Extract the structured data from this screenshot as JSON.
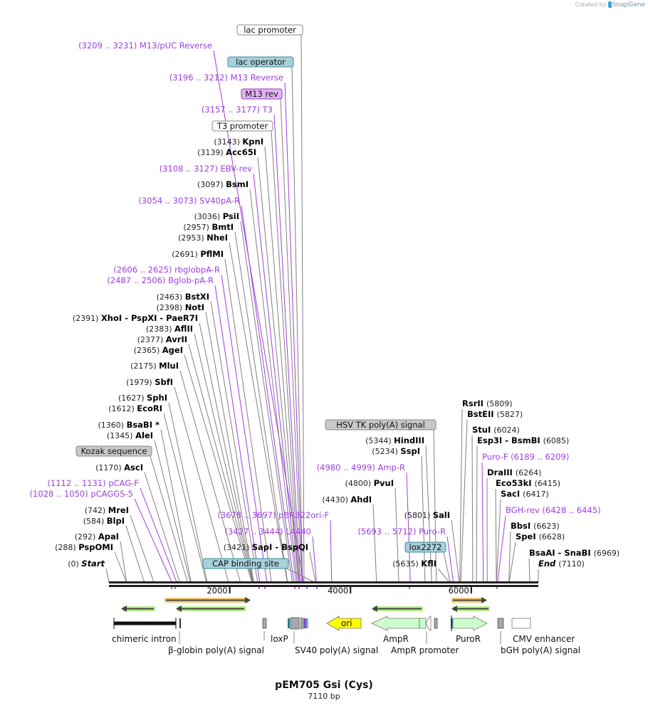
{
  "watermark": {
    "created_by": "Created by",
    "brand": "SnapGene"
  },
  "title": "pEM705 Gsi (Cys)",
  "length_label": "7110 bp",
  "colors": {
    "primer": "#a13de0",
    "enzyme": "#000000",
    "backbone": "#222222",
    "ori": "#ffff00",
    "ampr": "#ccffcc",
    "orf_orange": "#f6c979",
    "orf_green": "#b8f08a",
    "lac_operator": "#a7d0da",
    "m13_rev": "#e3b3f6",
    "misc_grey": "#c6c8cb"
  },
  "ruler": {
    "ticks": [
      {
        "label": "2000",
        "value": 2000
      },
      {
        "label": "4000",
        "value": 4000
      },
      {
        "label": "6000",
        "value": 6000
      }
    ]
  },
  "left_labels": [
    {
      "type": "boxed",
      "name": "lac promoter",
      "box": "white"
    },
    {
      "type": "primer",
      "pos": "(3209 .. 3231)",
      "name": "M13/pUC Reverse"
    },
    {
      "type": "boxed",
      "name": "lac operator",
      "box": "teal"
    },
    {
      "type": "primer",
      "pos": "(3196 .. 3212)",
      "name": "M13 Reverse"
    },
    {
      "type": "boxed",
      "name": "M13 rev",
      "box": "purple"
    },
    {
      "type": "primer",
      "pos": "(3157 .. 3177)",
      "name": "T3"
    },
    {
      "type": "boxed",
      "name": "T3 promoter",
      "box": "white"
    },
    {
      "type": "enzyme",
      "pos": "(3143)",
      "name": "KpnI"
    },
    {
      "type": "enzyme",
      "pos": "(3139)",
      "name": "Acc65I"
    },
    {
      "type": "primer",
      "pos": "(3108 .. 3127)",
      "name": "EBV-rev"
    },
    {
      "type": "enzyme",
      "pos": "(3097)",
      "name": "BsmI"
    },
    {
      "type": "primer",
      "pos": "(3054 .. 3073)",
      "name": "SV40pA-R"
    },
    {
      "type": "enzyme",
      "pos": "(3036)",
      "name": "PsiI"
    },
    {
      "type": "enzyme",
      "pos": "(2957)",
      "name": "BmtI"
    },
    {
      "type": "enzyme",
      "pos": "(2953)",
      "name": "NheI"
    },
    {
      "type": "enzyme",
      "pos": "(2691)",
      "name": "PflMI"
    },
    {
      "type": "primer",
      "pos": "(2606 .. 2625)",
      "name": "rbglobpA-R"
    },
    {
      "type": "primer",
      "pos": "(2487 .. 2506)",
      "name": "Bglob-pA-R"
    },
    {
      "type": "enzyme",
      "pos": "(2463)",
      "name": "BstXI"
    },
    {
      "type": "enzyme",
      "pos": "(2398)",
      "name": "NotI"
    },
    {
      "type": "enzyme",
      "pos": "(2391)",
      "name": "XhoI  -  PspXI  -  PaeR7I"
    },
    {
      "type": "enzyme",
      "pos": "(2383)",
      "name": "AflII"
    },
    {
      "type": "enzyme",
      "pos": "(2377)",
      "name": "AvrII"
    },
    {
      "type": "enzyme",
      "pos": "(2365)",
      "name": "AgeI"
    },
    {
      "type": "enzyme",
      "pos": "(2175)",
      "name": "MluI"
    },
    {
      "type": "enzyme",
      "pos": "(1979)",
      "name": "SbfI"
    },
    {
      "type": "enzyme",
      "pos": "(1627)",
      "name": "SphI"
    },
    {
      "type": "enzyme",
      "pos": "(1612)",
      "name": "EcoRI"
    },
    {
      "type": "enzyme",
      "pos": "(1360)",
      "name": "BsaBI *"
    },
    {
      "type": "enzyme",
      "pos": "(1345)",
      "name": "AleI"
    },
    {
      "type": "boxed",
      "name": "Kozak sequence",
      "box": "grey"
    },
    {
      "type": "enzyme",
      "pos": "(1170)",
      "name": "AscI"
    },
    {
      "type": "primer",
      "pos": "(1112 .. 1131)",
      "name": "pCAG-F"
    },
    {
      "type": "primer",
      "pos": "(1028 .. 1050)",
      "name": "pCAGGS-5"
    },
    {
      "type": "enzyme",
      "pos": "(742)",
      "name": "MreI"
    },
    {
      "type": "enzyme",
      "pos": "(584)",
      "name": "BlpI"
    },
    {
      "type": "enzyme",
      "pos": "(292)",
      "name": "ApaI"
    },
    {
      "type": "enzyme",
      "pos": "(288)",
      "name": "PspOMI"
    },
    {
      "type": "enzyme",
      "pos": "(0)",
      "name": "Start"
    },
    {
      "type": "primer",
      "pos": "(3678 .. 3697)",
      "name": "pBR322ori-F"
    },
    {
      "type": "primer",
      "pos": "(3427 .. 3444)",
      "name": "L4440"
    },
    {
      "type": "enzyme",
      "pos": "(3421)",
      "name": "SapI  -  BspQI"
    },
    {
      "type": "boxed",
      "name": "CAP binding site",
      "box": "teal"
    }
  ],
  "middle_labels": [
    {
      "type": "boxed",
      "name": "HSV TK poly(A) signal",
      "box": "grey"
    },
    {
      "type": "enzyme",
      "pos": "(5344)",
      "name": "HindIII"
    },
    {
      "type": "enzyme",
      "pos": "(5234)",
      "name": "SspI"
    },
    {
      "type": "primer",
      "pos": "(4980 .. 4999)",
      "name": "Amp-R"
    },
    {
      "type": "enzyme",
      "pos": "(4800)",
      "name": "PvuI"
    },
    {
      "type": "enzyme",
      "pos": "(4430)",
      "name": "AhdI"
    },
    {
      "type": "enzyme",
      "pos": "(5801)",
      "name": "SalI"
    },
    {
      "type": "primer",
      "pos": "(5693 .. 5712)",
      "name": "Puro-R"
    },
    {
      "type": "boxed",
      "name": "lox2272",
      "box": "teal"
    },
    {
      "type": "enzyme",
      "pos": "(5635)",
      "name": "KflI"
    }
  ],
  "right_labels": [
    {
      "type": "enzyme",
      "name": "RsrII",
      "pos": "(5809)"
    },
    {
      "type": "enzyme",
      "name": "BstEII",
      "pos": "(5827)"
    },
    {
      "type": "enzyme",
      "name": "StuI",
      "pos": "(6024)"
    },
    {
      "type": "enzyme",
      "name": "Esp3I  -  BsmBI",
      "pos": "(6085)"
    },
    {
      "type": "primer",
      "name": "Puro-F",
      "pos": "(6189 .. 6209)"
    },
    {
      "type": "enzyme",
      "name": "DraIII",
      "pos": "(6264)"
    },
    {
      "type": "enzyme",
      "name": "Eco53kI",
      "pos": "(6415)"
    },
    {
      "type": "enzyme",
      "name": "SacI",
      "pos": "(6417)"
    },
    {
      "type": "primer",
      "name": "BGH-rev",
      "pos": "(6428 .. 6445)"
    },
    {
      "type": "enzyme",
      "name": "BbsI",
      "pos": "(6623)"
    },
    {
      "type": "enzyme",
      "name": "SpeI",
      "pos": "(6628)"
    },
    {
      "type": "enzyme",
      "name": "BsaAI  -  SnaBI",
      "pos": "(6969)"
    },
    {
      "type": "enzyme",
      "name": "End",
      "pos": "(7110)"
    }
  ],
  "features": [
    {
      "name": "chimeric intron"
    },
    {
      "name": "β-globin poly(A) signal"
    },
    {
      "name": "loxP"
    },
    {
      "name": "SV40 poly(A) signal"
    },
    {
      "name": "ori"
    },
    {
      "name": "AmpR"
    },
    {
      "name": "AmpR promoter"
    },
    {
      "name": "PuroR"
    },
    {
      "name": "CMV enhancer"
    },
    {
      "name": "bGH poly(A) signal"
    }
  ]
}
